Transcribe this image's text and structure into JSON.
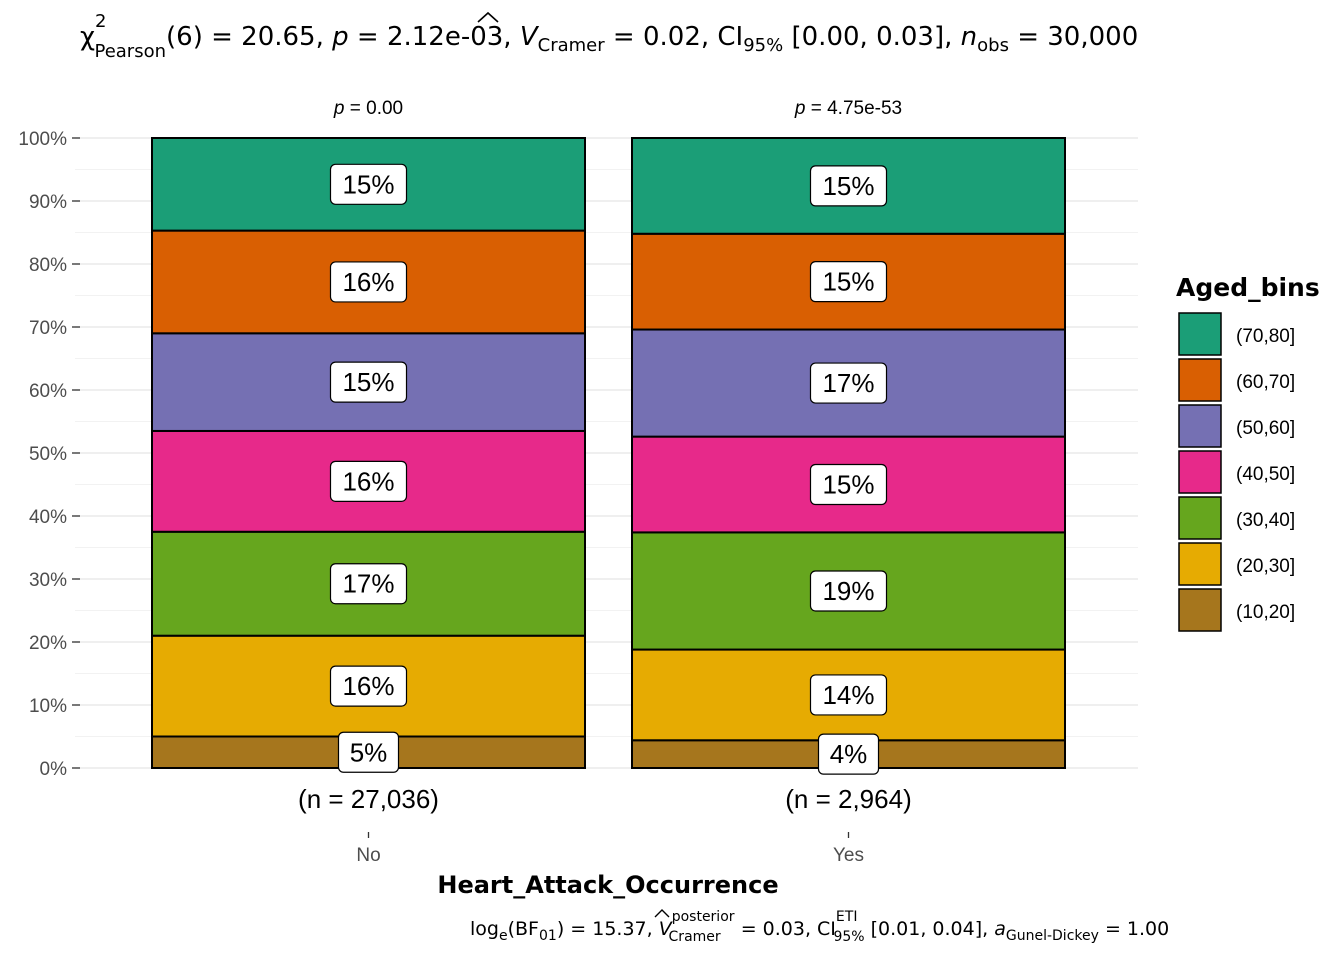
{
  "chart_data": {
    "type": "bar",
    "stacked": "percent",
    "title": {
      "chi_symbol": "χ",
      "chi_sup": "2",
      "chi_sub": "Pearson",
      "df": "(6) = 20.65, ",
      "p_symbol": "p",
      "p_text": " = 2.12e-03, ",
      "v_symbol": "V",
      "v_sub": "Cramer",
      "v_text": " = 0.02, CI",
      "ci_sub": "95%",
      "ci_text": " [0.00, 0.03], ",
      "n_symbol": "n",
      "n_sub": "obs",
      "n_text": " = 30,000"
    },
    "caption": {
      "log_text": "log",
      "log_sub": "e",
      "bf_text": "(BF",
      "bf_sub": "01",
      "bf_rest": ") = 15.37, ",
      "v_symbol": "V",
      "v_sup": "posterior",
      "v_sub": "Cramer",
      "v_rest": " = 0.03, CI",
      "ci_sup": "ETI",
      "ci_sub": "95%",
      "ci_rest": " [0.01, 0.04], ",
      "a_symbol": "a",
      "a_sub": "Gunel-Dickey",
      "a_rest": " = 1.00"
    },
    "xlabel": "Heart_Attack_Occurrence",
    "ylabel": "",
    "ylim": [
      0,
      100
    ],
    "y_ticks": [
      "0%",
      "10%",
      "20%",
      "30%",
      "40%",
      "50%",
      "60%",
      "70%",
      "80%",
      "90%",
      "100%"
    ],
    "grid": true,
    "legend_title": "Aged_bins",
    "legend_position": "right",
    "categories": [
      "No",
      "Yes"
    ],
    "facet_p_labels": [
      {
        "symbol": "p",
        "text": " = 0.00"
      },
      {
        "symbol": "p",
        "text": " = 4.75e-53"
      }
    ],
    "counts": [
      "(n = 27,036)",
      "(n = 2,964)"
    ],
    "series": [
      {
        "name": "(10,20]",
        "color": "#A6761D",
        "values": [
          5,
          4.4
        ],
        "labels": [
          "5%",
          "4%"
        ]
      },
      {
        "name": "(20,30]",
        "color": "#E6AB02",
        "values": [
          16,
          14.4
        ],
        "labels": [
          "16%",
          "14%"
        ]
      },
      {
        "name": "(30,40]",
        "color": "#66A61E",
        "values": [
          16.5,
          18.6
        ],
        "labels": [
          "17%",
          "19%"
        ]
      },
      {
        "name": "(40,50]",
        "color": "#E7298A",
        "values": [
          16,
          15.2
        ],
        "labels": [
          "16%",
          "15%"
        ]
      },
      {
        "name": "(50,60]",
        "color": "#7570B3",
        "values": [
          15.5,
          17
        ],
        "labels": [
          "15%",
          "17%"
        ]
      },
      {
        "name": "(60,70]",
        "color": "#D95F02",
        "values": [
          16.3,
          15.2
        ],
        "labels": [
          "16%",
          "15%"
        ]
      },
      {
        "name": "(70,80]",
        "color": "#1B9E77",
        "values": [
          14.7,
          15.2
        ],
        "labels": [
          "15%",
          "15%"
        ]
      }
    ]
  }
}
